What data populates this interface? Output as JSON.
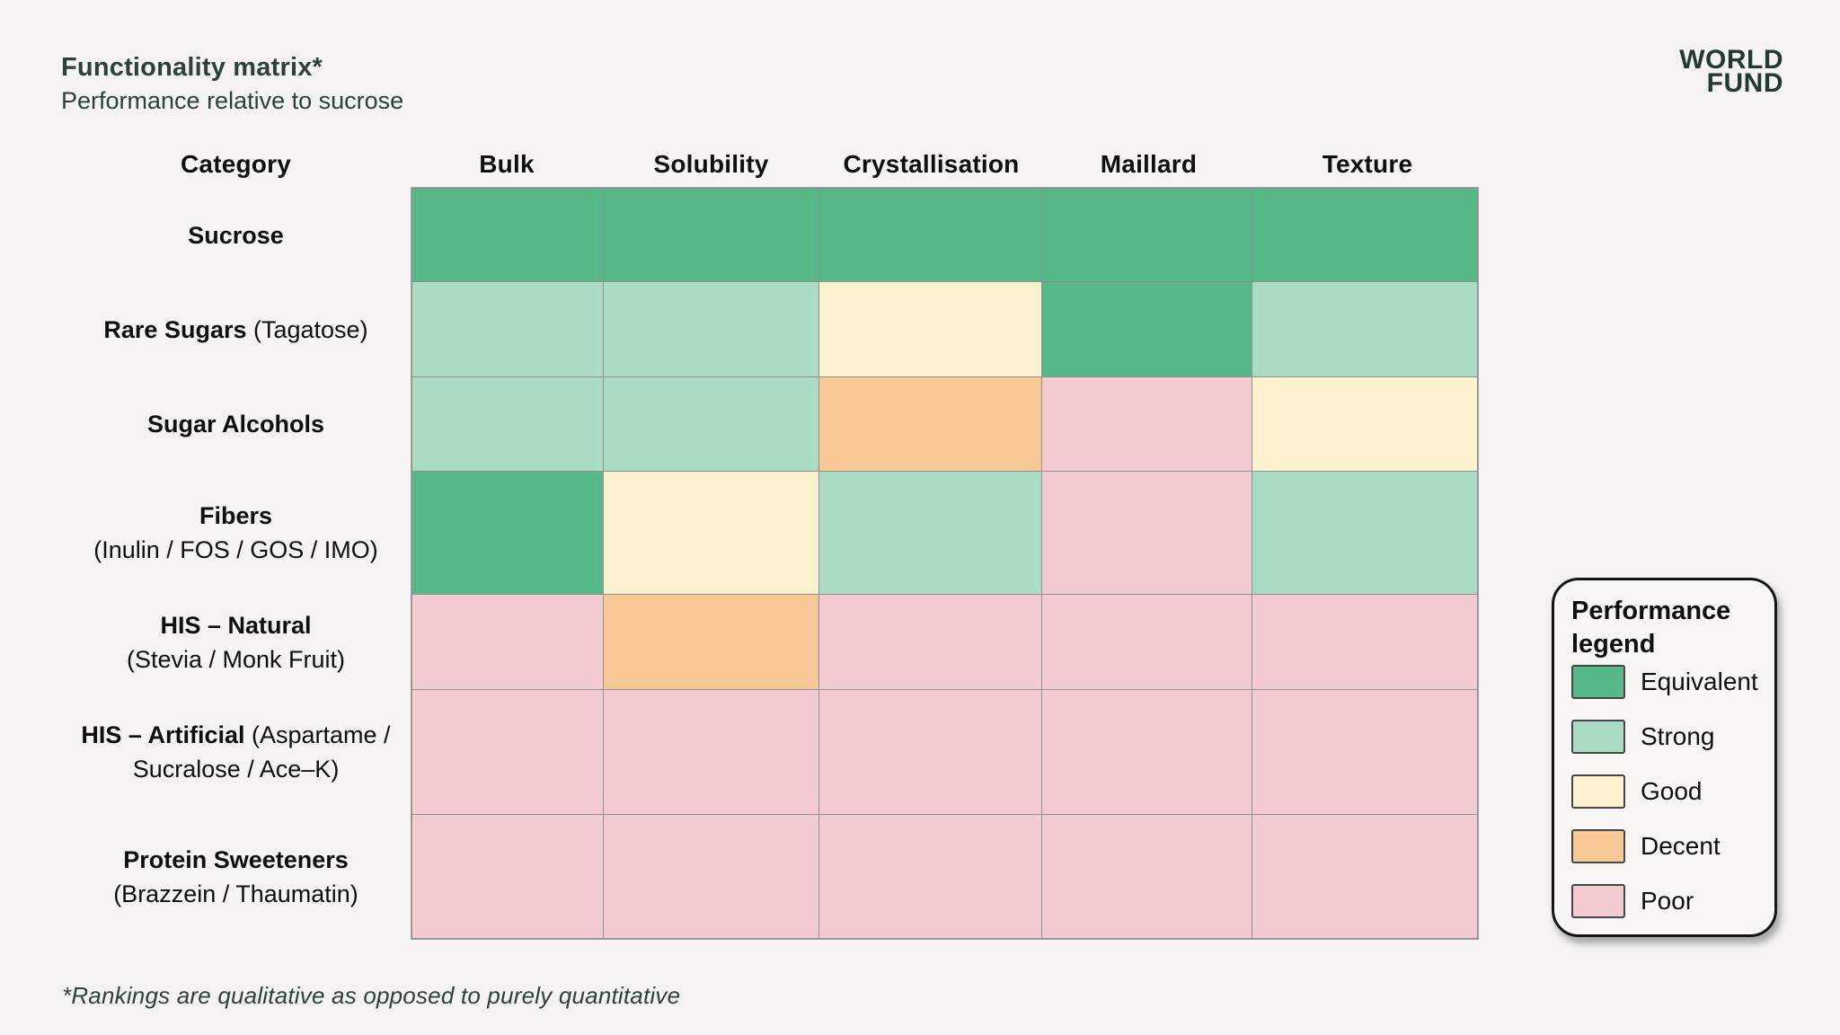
{
  "page": {
    "title": "Functionality matrix*",
    "subtitle": "Performance relative to sucrose",
    "footnote": "*Rankings are qualitative as opposed to purely quantitative",
    "colors": {
      "background": "#f4f3f1",
      "heading_text": "#2e4137",
      "body_text": "#0e0f10",
      "grid_line": "#909094"
    }
  },
  "logo": {
    "line1": "WORLD",
    "line2": "FUND"
  },
  "legend": {
    "title_line1": "Performance",
    "title_line2": "legend",
    "items": [
      {
        "key": "equivalent",
        "label": "Equivalent",
        "color": "#57b987"
      },
      {
        "key": "strong",
        "label": "Strong",
        "color": "#aadcc4"
      },
      {
        "key": "good",
        "label": "Good",
        "color": "#fdf2d0"
      },
      {
        "key": "decent",
        "label": "Decent",
        "color": "#f8c997"
      },
      {
        "key": "poor",
        "label": "Poor",
        "color": "#f4cbd0"
      }
    ]
  },
  "matrix": {
    "corner_header": "Category",
    "rows": [
      {
        "name": "Sucrose",
        "detail": "",
        "stacked": false
      },
      {
        "name": "Rare Sugars",
        "detail": "(Tagatose)",
        "stacked": false
      },
      {
        "name": "Sugar Alcohols",
        "detail": "",
        "stacked": false
      },
      {
        "name": "Fibers",
        "detail": "(Inulin / FOS / GOS / IMO)",
        "stacked": true
      },
      {
        "name": "HIS – Natural",
        "detail": "(Stevia / Monk Fruit)",
        "stacked": true
      },
      {
        "name": "HIS – Artificial",
        "detail": "(Aspartame / Sucralose / Ace–K)",
        "stacked": false
      },
      {
        "name": "Protein Sweeteners",
        "detail": "(Brazzein / Thaumatin)",
        "stacked": true
      }
    ]
  },
  "chart_data": {
    "type": "heatmap",
    "title": "Functionality matrix*",
    "subtitle": "Performance relative to sucrose",
    "columns": [
      "Bulk",
      "Solubility",
      "Crystallisation",
      "Maillard",
      "Texture"
    ],
    "rows": [
      "Sucrose",
      "Rare Sugars (Tagatose)",
      "Sugar Alcohols",
      "Fibers (Inulin / FOS / GOS / IMO)",
      "HIS – Natural (Stevia / Monk Fruit)",
      "HIS – Artificial (Aspartame / Sucralose / Ace–K)",
      "Protein Sweeteners (Brazzein / Thaumatin)"
    ],
    "values": [
      [
        "equivalent",
        "equivalent",
        "equivalent",
        "equivalent",
        "equivalent"
      ],
      [
        "strong",
        "strong",
        "good",
        "equivalent",
        "strong"
      ],
      [
        "strong",
        "strong",
        "decent",
        "poor",
        "good"
      ],
      [
        "equivalent",
        "good",
        "strong",
        "poor",
        "strong"
      ],
      [
        "poor",
        "decent",
        "poor",
        "poor",
        "poor"
      ],
      [
        "poor",
        "poor",
        "poor",
        "poor",
        "poor"
      ],
      [
        "poor",
        "poor",
        "poor",
        "poor",
        "poor"
      ]
    ],
    "rating_scale": [
      "equivalent",
      "strong",
      "good",
      "decent",
      "poor"
    ],
    "legend_title": "Performance legend",
    "legend_position": "right",
    "footnote": "*Rankings are qualitative as opposed to purely quantitative"
  }
}
